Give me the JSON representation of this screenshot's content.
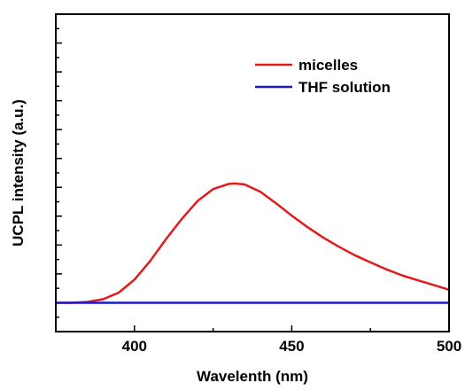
{
  "chart_data": {
    "type": "line",
    "title": "",
    "xlabel": "Wavelenth (nm)",
    "ylabel": "UCPL intensity (a.u.)",
    "xlim": [
      375,
      500
    ],
    "ylim": [
      -10,
      100
    ],
    "x_ticks": [
      400,
      450,
      500
    ],
    "y_ticks_labeled": false,
    "grid": false,
    "legend_position": "top-right",
    "series": [
      {
        "name": "micelles",
        "color": "#e31a1c",
        "x": [
          375,
          380,
          385,
          390,
          395,
          400,
          405,
          410,
          415,
          420,
          425,
          430,
          432,
          435,
          440,
          445,
          450,
          455,
          460,
          465,
          470,
          475,
          480,
          485,
          490,
          495,
          500
        ],
        "y": [
          0,
          0,
          0.3,
          1.2,
          3.5,
          8,
          14.5,
          22,
          29,
          35.2,
          39.4,
          41.2,
          41.3,
          41,
          38.5,
          34.5,
          30.2,
          26.2,
          22.6,
          19.4,
          16.5,
          14,
          11.6,
          9.5,
          7.8,
          6.2,
          4.5
        ]
      },
      {
        "name": "THF solution",
        "color": "#1a1ac8",
        "x": [
          375,
          500
        ],
        "y": [
          0,
          0
        ]
      }
    ]
  }
}
